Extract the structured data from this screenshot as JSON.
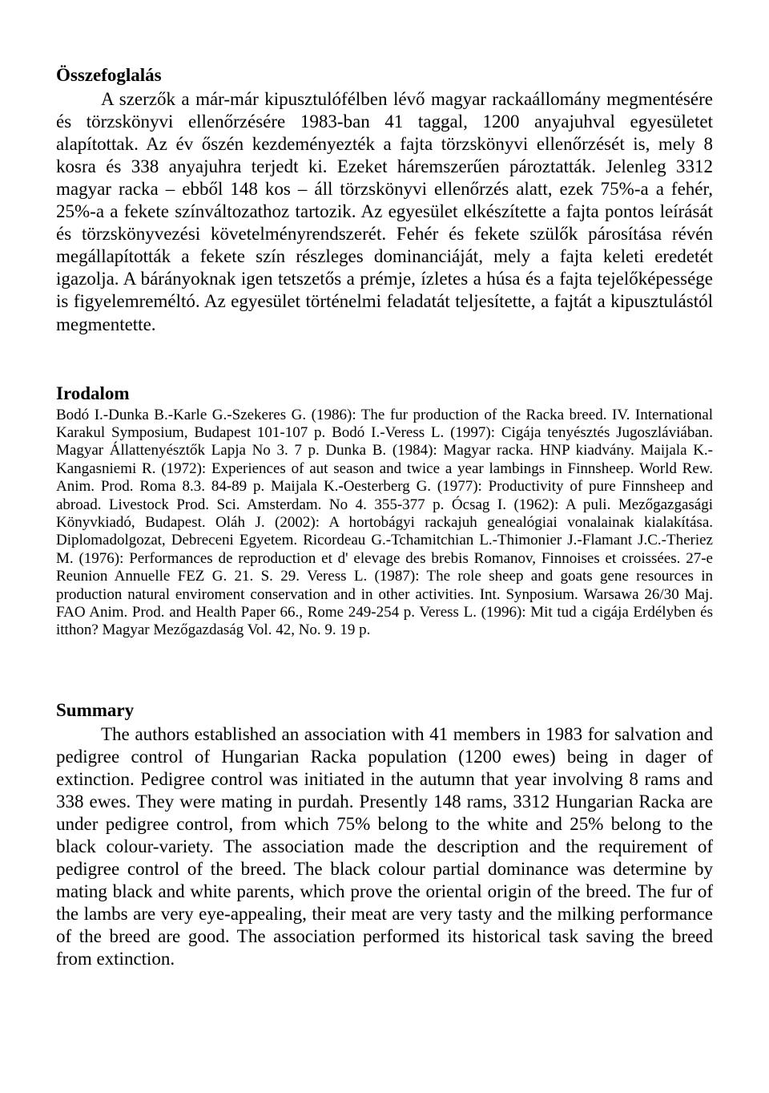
{
  "osszefoglalas": {
    "heading": "Összefoglalás",
    "body": "A szerzők a már-már kipusztulófélben lévő magyar rackaállomány megmentésére és törzskönyvi ellenőrzésére 1983-ban 41 taggal, 1200 anyajuhval egyesületet alapítottak. Az év őszén kezdeményezték a fajta törzskönyvi ellenőrzését is, mely 8 kosra és 338 anyajuhra terjedt ki. Ezeket háremszerűen pároztatták. Jelenleg 3312 magyar racka – ebből 148 kos – áll törzskönyvi ellenőrzés alatt, ezek 75%-a a fehér, 25%-a a fekete színváltozathoz tartozik. Az egyesület elkészítette a fajta pontos leírását és törzskönyvezési követelményrendszerét. Fehér és fekete szülők párosítása révén megállapították a fekete szín részleges dominanciáját, mely a fajta keleti eredetét igazolja. A bárányoknak igen tetszetős a prémje, ízletes a húsa és a fajta tejelőképessége is figyelemreméltó. Az egyesület történelmi feladatát teljesítette, a fajtát a kipusztulástól megmentette."
  },
  "irodalom": {
    "heading": "Irodalom",
    "body": "Bodó I.-Dunka B.-Karle G.-Szekeres G. (1986): The fur production of the Racka breed. IV. International Karakul Symposium, Budapest 101-107 p. Bodó I.-Veress L. (1997): Cigája tenyésztés Jugoszláviában. Magyar Állattenyésztők Lapja No 3. 7 p. Dunka B. (1984): Magyar racka. HNP kiadvány. Maijala K.-Kangasniemi R. (1972): Experiences of aut season and twice a year lambings in Finnsheep. World Rew. Anim. Prod. Roma 8.3. 84-89 p. Maijala K.-Oesterberg G. (1977): Productivity of pure Finnsheep and abroad. Livestock Prod. Sci. Amsterdam. No 4. 355-377 p. Ócsag I. (1962): A puli. Mezőgazgasági Könyvkiadó, Budapest. Oláh J. (2002): A hortobágyi rackajuh genealógiai vonalainak kialakítása. Diplomadolgozat, Debreceni Egyetem. Ricordeau G.-Tchamitchian L.-Thimonier J.-Flamant J.C.-Theriez M. (1976): Performances de reproduction et d' elevage des brebis Romanov, Finnoises et croissées. 27-e Reunion Annuelle FEZ G. 21. S. 29. Veress L. (1987): The role sheep and goats gene resources in production natural enviroment conservation and in other activities. Int. Synposium. Warsawa 26/30 Maj. FAO Anim. Prod. and Health Paper 66., Rome 249-254 p. Veress L. (1996): Mit tud a cigája Erdélyben és itthon? Magyar Mezőgazdaság Vol. 42, No. 9. 19 p."
  },
  "summary": {
    "heading": "Summary",
    "body": "The authors established an association with 41 members in 1983 for salvation and pedigree control of Hungarian Racka population (1200 ewes) being in dager of extinction. Pedigree control was initiated in the autumn that year involving 8 rams and 338 ewes. They were mating in purdah. Presently 148 rams, 3312 Hungarian Racka are under pedigree control, from which 75% belong to the white and 25% belong to the black colour-variety. The association made the description and the requirement of pedigree control of the breed. The black colour partial dominance was determine by mating black and white parents, which prove the oriental origin of the breed. The fur of the lambs are very eye-appealing, their meat are very tasty and the milking performance of the breed are good. The association performed its historical task saving the breed from extinction."
  }
}
